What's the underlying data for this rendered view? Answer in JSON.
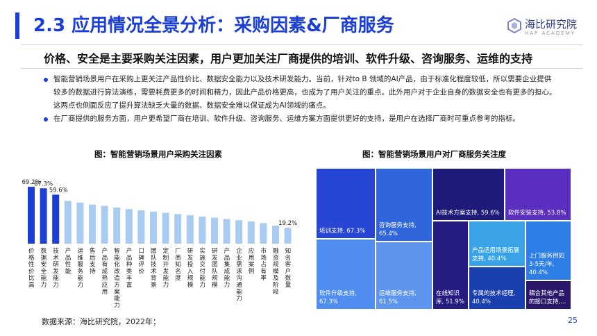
{
  "header": {
    "title": "2.3 应用情况全景分析：采购因素&厂商服务",
    "logo_name": "海比研究院",
    "logo_sub": "HAP ACADEMY"
  },
  "subtitle": "价格、安全是主要采购关注因素，用户更加关注厂商提供的培训、软件升级、咨询服务、运维的支持",
  "bullets": [
    "智能营销场景用户在采购上更关注产品性价比、数据安全能力以及技术研发能力。当前，针对to B 领域的AI产品，由于标准化程度较低，所以需要企业提供较多的数据进行算法演练，需要耗费更多的时间和精力，因此产品价格更高，也成为了用户关注的重点。此外用户对于企业自身的数据安全也有更多的担心。这两点也侧面反应了提升算法缺乏大量的数据、数据安全难以保证成为AI领域的痛点。",
    "在厂商提供的服务方面，用户更希望厂商在培训、软件升级、咨询服务、运维方案方面提供更好的支持，是用户在选择厂商时可重点参考的指标。"
  ],
  "footer": {
    "source": "数据来源：海比研究院，2022年；",
    "page": "25"
  },
  "chart_data": [
    {
      "type": "bar",
      "title": "图：智能营销场景用户采购关注因素",
      "categories": [
        "价格性价比高",
        "数据安全能力",
        "技术研发能力",
        "产品性能",
        "运维服务能力",
        "售后支持",
        "产品有成熟应用",
        "智能化改造方案能力",
        "产品种类丰富",
        "口碑评价",
        "团队技术背景",
        "定制开发能力",
        "厂商知名度",
        "研发投入规模",
        "实施交付能力",
        "研发团队规模",
        "产品集成能力",
        "企业需求沟通能力",
        "应用案例",
        "市场占有率",
        "融资规模及阶段",
        "知名客户数量"
      ],
      "values": [
        69.2,
        67.3,
        59.6,
        null,
        null,
        null,
        null,
        null,
        null,
        null,
        null,
        null,
        null,
        null,
        null,
        null,
        null,
        null,
        null,
        null,
        null,
        19.2
      ],
      "value_labels": [
        "69.2%",
        "67.3%",
        "59.6%",
        "",
        "",
        "",
        "",
        "",
        "",
        "",
        "",
        "",
        "",
        "",
        "",
        "",
        "",
        "",
        "",
        "",
        "",
        "19.2%"
      ],
      "colors": {
        "highlight": "#1b3fd6",
        "normal": "#a9ccf2"
      }
    },
    {
      "type": "treemap",
      "title": "图：智能营销场景用户对厂商服务关注度",
      "items": [
        {
          "label": "培训支持, 67.3%",
          "value": 67.3,
          "color": "#2746d3"
        },
        {
          "label": "软件升级支持, 67.3%",
          "value": 67.3,
          "color": "#4f8df0"
        },
        {
          "label": "咨询服务支持, 65.4%",
          "value": 65.4,
          "color": "#2f66db"
        },
        {
          "label": "运维服务支持, 61.5%",
          "value": 61.5,
          "color": "#5c94ee"
        },
        {
          "label": "AI技术方案支持, 59.6%",
          "value": 59.6,
          "color": "#1e1a7a"
        },
        {
          "label": "软件安装支持, 53.8%",
          "value": 53.8,
          "color": "#5b2fc0"
        },
        {
          "label": "在线知识库, 51.9%",
          "value": 51.9,
          "color": "#241c80"
        },
        {
          "label": "产品适用场景拓展支持, 40.4%",
          "value": 40.4,
          "color": "#3aa3e8"
        },
        {
          "label": "专属的技术经理, 40.4%",
          "value": 40.4,
          "color": "#1a3fae"
        },
        {
          "label": "上门服务例如3-5天/年, 40.4%",
          "value": 40.4,
          "color": "#2e7ee8"
        },
        {
          "label": "耦合其他产品的接口支持,...",
          "value": null,
          "color": "#2a1769"
        }
      ]
    }
  ]
}
